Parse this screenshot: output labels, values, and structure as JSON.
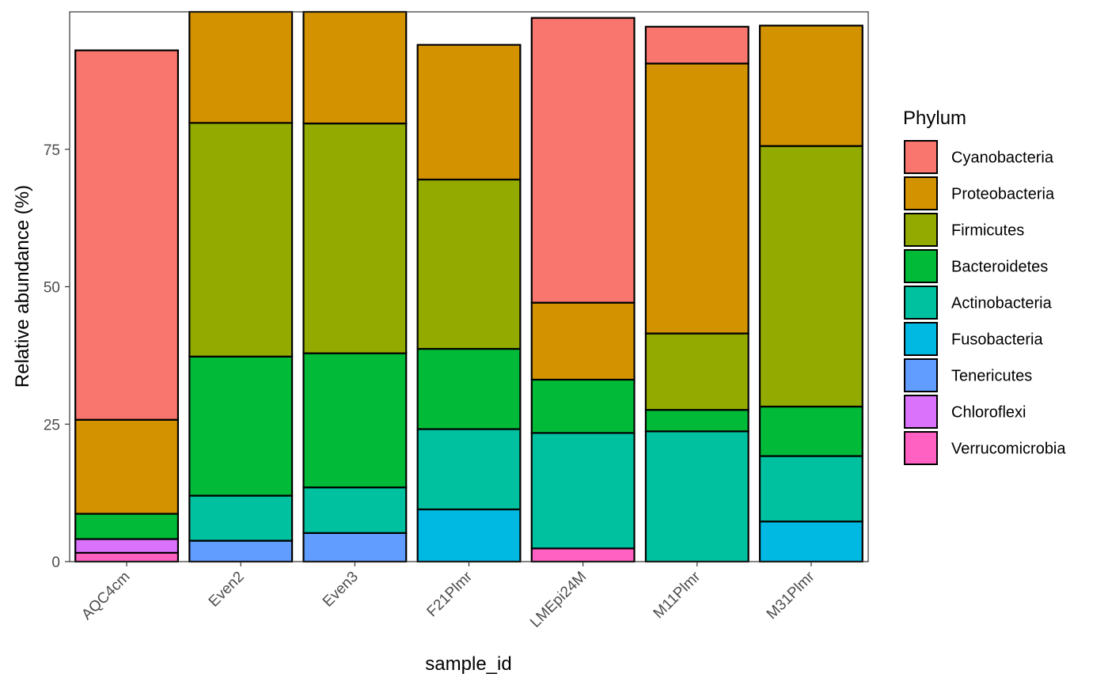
{
  "chart_data": {
    "type": "bar",
    "stacked": true,
    "title": "",
    "xlabel": "sample_id",
    "ylabel": "Relative abundance (%)",
    "ylim": [
      0,
      100
    ],
    "yticks": [
      0,
      25,
      50,
      75
    ],
    "grid": false,
    "legend": {
      "title": "Phylum",
      "position": "right"
    },
    "categories": [
      "AQC4cm",
      "Even2",
      "Even3",
      "F21Plmr",
      "LMEpi24M",
      "M11Plmr",
      "M31Plmr"
    ],
    "series": [
      {
        "name": "Verrucomicrobia",
        "color": "#FF61C3",
        "values": [
          1.6,
          0,
          0,
          0,
          2.4,
          0,
          0
        ]
      },
      {
        "name": "Chloroflexi",
        "color": "#DB72FB",
        "values": [
          2.5,
          0,
          0,
          0,
          0,
          0,
          0
        ]
      },
      {
        "name": "Tenericutes",
        "color": "#619CFF",
        "values": [
          0,
          3.8,
          5.2,
          0,
          0,
          0,
          0
        ]
      },
      {
        "name": "Fusobacteria",
        "color": "#00B9E3",
        "values": [
          0,
          0,
          0,
          9.5,
          0,
          0,
          7.3
        ]
      },
      {
        "name": "Actinobacteria",
        "color": "#00C19F",
        "values": [
          0,
          8.2,
          8.3,
          14.6,
          21.0,
          23.7,
          11.9
        ]
      },
      {
        "name": "Bacteroidetes",
        "color": "#00BA38",
        "values": [
          4.6,
          25.3,
          24.4,
          14.6,
          9.7,
          3.9,
          9.0
        ]
      },
      {
        "name": "Firmicutes",
        "color": "#93AA00",
        "values": [
          0,
          42.5,
          41.8,
          30.8,
          0,
          13.9,
          47.4
        ]
      },
      {
        "name": "Proteobacteria",
        "color": "#D39200",
        "values": [
          17.1,
          20.2,
          20.3,
          24.5,
          14.0,
          49.1,
          21.9
        ]
      },
      {
        "name": "Cyanobacteria",
        "color": "#F8766D",
        "values": [
          67.2,
          0,
          0,
          0,
          51.8,
          6.7,
          0
        ]
      }
    ],
    "legend_order": [
      "Cyanobacteria",
      "Proteobacteria",
      "Firmicutes",
      "Bacteroidetes",
      "Actinobacteria",
      "Fusobacteria",
      "Tenericutes",
      "Chloroflexi",
      "Verrucomicrobia"
    ]
  }
}
